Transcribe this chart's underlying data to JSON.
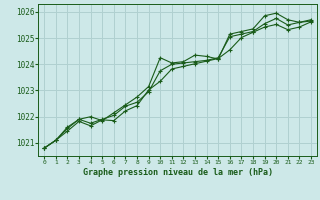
{
  "title": "Graphe pression niveau de la mer (hPa)",
  "bg_color": "#cde8e8",
  "grid_color": "#b0d0d0",
  "line_color": "#1a5c1a",
  "text_color": "#1a5c1a",
  "xlim": [
    -0.5,
    23.5
  ],
  "ylim": [
    1020.5,
    1026.3
  ],
  "yticks": [
    1021,
    1022,
    1023,
    1024,
    1025,
    1026
  ],
  "xticks": [
    0,
    1,
    2,
    3,
    4,
    5,
    6,
    7,
    8,
    9,
    10,
    11,
    12,
    13,
    14,
    15,
    16,
    17,
    18,
    19,
    20,
    21,
    22,
    23
  ],
  "line1_x": [
    0,
    1,
    2,
    3,
    4,
    5,
    6,
    7,
    8,
    9,
    10,
    11,
    12,
    13,
    14,
    15,
    16,
    17,
    18,
    19,
    20,
    21,
    22,
    23
  ],
  "line1_y": [
    1020.8,
    1021.1,
    1021.6,
    1021.9,
    1022.0,
    1021.85,
    1022.15,
    1022.45,
    1022.75,
    1023.15,
    1024.25,
    1024.05,
    1024.1,
    1024.35,
    1024.3,
    1024.2,
    1025.15,
    1025.25,
    1025.35,
    1025.85,
    1025.95,
    1025.7,
    1025.6,
    1025.7
  ],
  "line2_x": [
    0,
    1,
    2,
    3,
    4,
    5,
    6,
    7,
    8,
    9,
    10,
    11,
    12,
    13,
    14,
    15,
    16,
    17,
    18,
    19,
    20,
    21,
    22,
    23
  ],
  "line2_y": [
    1020.8,
    1021.1,
    1021.55,
    1021.9,
    1021.75,
    1021.9,
    1022.05,
    1022.4,
    1022.55,
    1022.95,
    1023.75,
    1024.0,
    1024.05,
    1024.1,
    1024.15,
    1024.25,
    1025.05,
    1025.15,
    1025.25,
    1025.55,
    1025.75,
    1025.5,
    1025.6,
    1025.65
  ],
  "line3_x": [
    0,
    1,
    2,
    3,
    4,
    5,
    6,
    7,
    8,
    9,
    10,
    11,
    12,
    13,
    14,
    15,
    16,
    17,
    18,
    19,
    20,
    21,
    22,
    23
  ],
  "line3_y": [
    1020.8,
    1021.1,
    1021.45,
    1021.82,
    1021.65,
    1021.88,
    1021.85,
    1022.22,
    1022.42,
    1023.02,
    1023.35,
    1023.82,
    1023.92,
    1024.02,
    1024.12,
    1024.22,
    1024.55,
    1025.02,
    1025.22,
    1025.42,
    1025.52,
    1025.32,
    1025.42,
    1025.62
  ]
}
